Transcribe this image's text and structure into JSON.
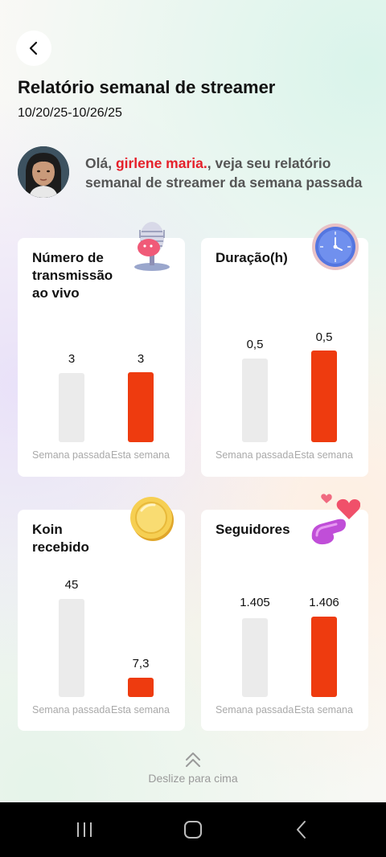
{
  "header": {
    "title": "Relatório semanal de streamer",
    "date_range": "10/20/25-10/26/25"
  },
  "greeting": {
    "prefix": "Olá, ",
    "name": "girlene maria.",
    "suffix": ", veja seu relatório semanal de streamer da semana passada"
  },
  "cards": [
    {
      "title": "Número de transmissão ao vivo",
      "icon": "microphone-icon",
      "last_label": "Semana passada",
      "this_label": "Esta semana",
      "last_value_text": "3",
      "this_value_text": "3",
      "last_value": 3,
      "this_value": 3
    },
    {
      "title": "Duração(h)",
      "icon": "clock-icon",
      "last_label": "Semana passada",
      "this_label": "Esta semana",
      "last_value_text": "0,5",
      "this_value_text": "0,5",
      "last_value": 0.5,
      "this_value": 0.5
    },
    {
      "title": "Koin recebido",
      "icon": "coin-icon",
      "last_label": "Semana passada",
      "this_label": "Esta semana",
      "last_value_text": "45",
      "this_value_text": "7,3",
      "last_value": 45,
      "this_value": 7.3
    },
    {
      "title": "Seguidores",
      "icon": "hearts-icon",
      "last_label": "Semana passada",
      "this_label": "Esta semana",
      "last_value_text": "1.405",
      "this_value_text": "1.406",
      "last_value": 1405,
      "this_value": 1406
    }
  ],
  "footer": {
    "swipe_text": "Deslize para cima"
  },
  "colors": {
    "accent": "#ee3b0f",
    "name": "#e5202a",
    "bar_last": "#ebebeb"
  }
}
